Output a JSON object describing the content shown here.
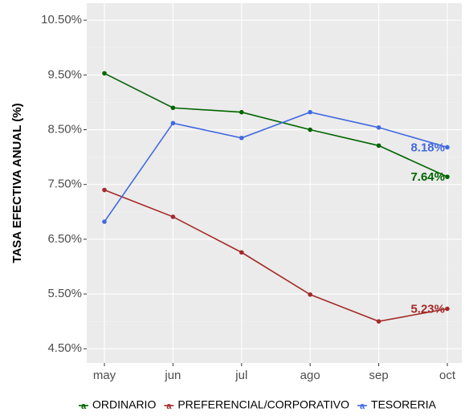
{
  "chart_data": {
    "type": "line",
    "y_label": "TASA EFECTIVA ANUAL (%)",
    "categories": [
      "may",
      "jun",
      "jul",
      "ago",
      "sep",
      "oct"
    ],
    "series": [
      {
        "name": "ORDINARIO",
        "color": "#006400",
        "values": [
          9.53,
          8.9,
          8.82,
          8.5,
          8.21,
          7.64
        ],
        "value_labels": [
          null,
          null,
          null,
          null,
          null,
          "7.64%"
        ]
      },
      {
        "name": "PREFERENCIAL/CORPORATIVO",
        "color": "#a52a2a",
        "values": [
          7.4,
          6.91,
          6.26,
          5.49,
          5.0,
          5.23
        ],
        "value_labels": [
          null,
          null,
          null,
          null,
          null,
          "5.23%"
        ]
      },
      {
        "name": "TESORERIA",
        "color": "#4169e1",
        "values": [
          6.82,
          8.62,
          8.35,
          8.82,
          8.54,
          8.18
        ],
        "value_labels": [
          null,
          null,
          null,
          null,
          null,
          "8.18%"
        ]
      }
    ],
    "ylim": [
      4.24,
      10.81
    ],
    "yticks": [
      {
        "value": 4.5,
        "label": "4.50%"
      },
      {
        "value": 5.5,
        "label": "5.50%"
      },
      {
        "value": 6.5,
        "label": "6.50%"
      },
      {
        "value": 7.5,
        "label": "7.50%"
      },
      {
        "value": 8.5,
        "label": "8.50%"
      },
      {
        "value": 9.5,
        "label": "9.50%"
      },
      {
        "value": 10.5,
        "label": "10.50%"
      }
    ],
    "grid": true,
    "legend": "bottom"
  }
}
